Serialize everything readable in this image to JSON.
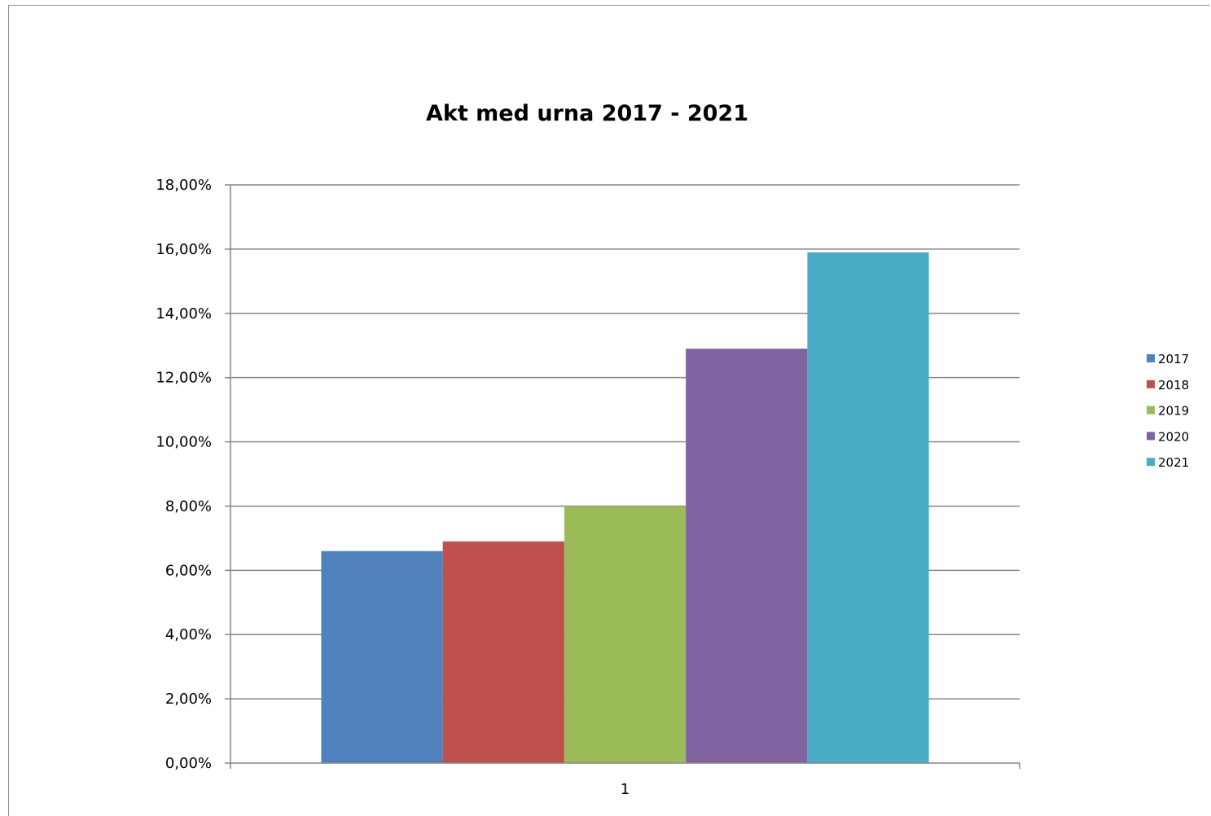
{
  "chart_data": {
    "type": "bar",
    "title": "Akt med urna 2017 - 2021",
    "categories": [
      "1"
    ],
    "series": [
      {
        "name": "2017",
        "values": [
          0.066
        ],
        "color": "#4f81bd"
      },
      {
        "name": "2018",
        "values": [
          0.069
        ],
        "color": "#c0504d"
      },
      {
        "name": "2019",
        "values": [
          0.08
        ],
        "color": "#9bbb59"
      },
      {
        "name": "2020",
        "values": [
          0.129
        ],
        "color": "#8064a2"
      },
      {
        "name": "2021",
        "values": [
          0.159
        ],
        "color": "#4bacc6"
      }
    ],
    "ylim": [
      0,
      0.18
    ],
    "yticks": [
      "0,00%",
      "2,00%",
      "4,00%",
      "6,00%",
      "8,00%",
      "10,00%",
      "12,00%",
      "14,00%",
      "16,00%",
      "18,00%"
    ],
    "grid": true,
    "legend": "right"
  }
}
